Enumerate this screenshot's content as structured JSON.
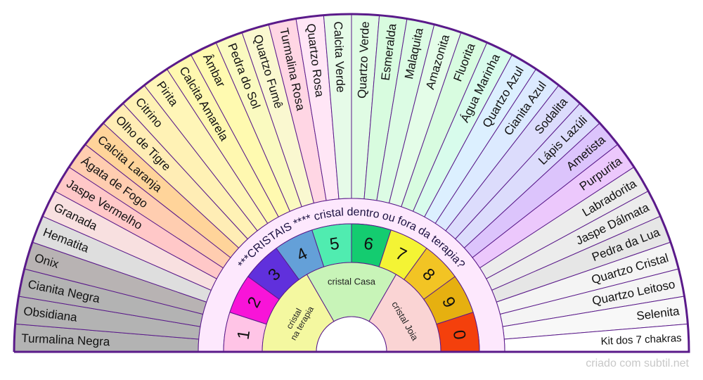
{
  "ring_title": "***CRISTAIS  **** cristal dentro ou fora da terapia?",
  "watermark": "criado com subtil.net",
  "crystals": [
    {
      "label": "Turmalina Negra",
      "color": "#b3b3b3"
    },
    {
      "label": "Obsidiana",
      "color": "#b3b3b3"
    },
    {
      "label": "Cianita Negra",
      "color": "#b3b3b3"
    },
    {
      "label": "Onix",
      "color": "#b8b3b3"
    },
    {
      "label": "Hematita",
      "color": "#dedede"
    },
    {
      "label": "Granada",
      "color": "#f8e0e0"
    },
    {
      "label": "Jaspe Vermelho",
      "color": "#ffc8c8"
    },
    {
      "label": "Ágata de Fogo",
      "color": "#ffcdb0"
    },
    {
      "label": "Calcita Laranja",
      "color": "#ffd49a"
    },
    {
      "label": "Olho de Tigre",
      "color": "#ffedb5"
    },
    {
      "label": "Citrino",
      "color": "#fff2b5"
    },
    {
      "label": "Pirita",
      "color": "#fff6b8"
    },
    {
      "label": "Calcita Amarela",
      "color": "#fff8b0"
    },
    {
      "label": "Âmbar",
      "color": "#fffab0"
    },
    {
      "label": "Pedra do Sol",
      "color": "#fafac0"
    },
    {
      "label": "Quartzo Fumê",
      "color": "#faf8d0"
    },
    {
      "label": "Turmalina Rosa",
      "color": "#ffd6e4"
    },
    {
      "label": "Quartzo Rosa",
      "color": "#ffe6f6"
    },
    {
      "label": "Calcita Verde",
      "color": "#e6fbe8"
    },
    {
      "label": "Quartzo Verde",
      "color": "#e0fce4"
    },
    {
      "label": "Esmeralda",
      "color": "#d8fcdf"
    },
    {
      "label": "Malaquita",
      "color": "#dcfce4"
    },
    {
      "label": "Amazonita",
      "color": "#e4fde8"
    },
    {
      "label": "Fluorita",
      "color": "#d8fce0"
    },
    {
      "label": "Água Marinha",
      "color": "#d8fcec"
    },
    {
      "label": "Quartzo Azul",
      "color": "#dcf0ff"
    },
    {
      "label": "Cianita Azul",
      "color": "#dceaff"
    },
    {
      "label": "Sodalita",
      "color": "#dcdcfc"
    },
    {
      "label": "Lápis Lazúli",
      "color": "#dcdcfc"
    },
    {
      "label": "Ametista",
      "color": "#dcc4fc"
    },
    {
      "label": "Purpurita",
      "color": "#ecc8fc"
    },
    {
      "label": "Labradorita",
      "color": "#ececec"
    },
    {
      "label": "Jaspe Dálmata",
      "color": "#ececec"
    },
    {
      "label": "Pedra da Lua",
      "color": "#e6e6e6"
    },
    {
      "label": "Quartzo Cristal",
      "color": "#f4f4f4"
    },
    {
      "label": "Quartzo Leitoso",
      "color": "#f4f4f4"
    },
    {
      "label": "Selenita",
      "color": "#f8f8f8"
    },
    {
      "label": "Kit dos 7 chakras",
      "color": "#ffffff"
    }
  ],
  "numbers": [
    {
      "label": "1",
      "color": "#ffc4e6"
    },
    {
      "label": "2",
      "color": "#f814d8"
    },
    {
      "label": "3",
      "color": "#6030dc"
    },
    {
      "label": "4",
      "color": "#64a0d8"
    },
    {
      "label": "5",
      "color": "#50ecb0"
    },
    {
      "label": "6",
      "color": "#14cc70"
    },
    {
      "label": "7",
      "color": "#f4f434"
    },
    {
      "label": "8",
      "color": "#f2c424"
    },
    {
      "label": "9",
      "color": "#e6b010"
    },
    {
      "label": "0",
      "color": "#f4400c"
    }
  ],
  "categories": [
    {
      "lines": [
        "cristal",
        "na terapia"
      ],
      "color": "#f4f8a0"
    },
    {
      "lines": [
        "cristal Casa"
      ],
      "color": "#c8f4b8"
    },
    {
      "lines": [
        "cristal Joia"
      ],
      "color": "#fad4d4"
    }
  ],
  "colors": {
    "stroke": "#5a1a8a",
    "band": "#fde8fd"
  }
}
